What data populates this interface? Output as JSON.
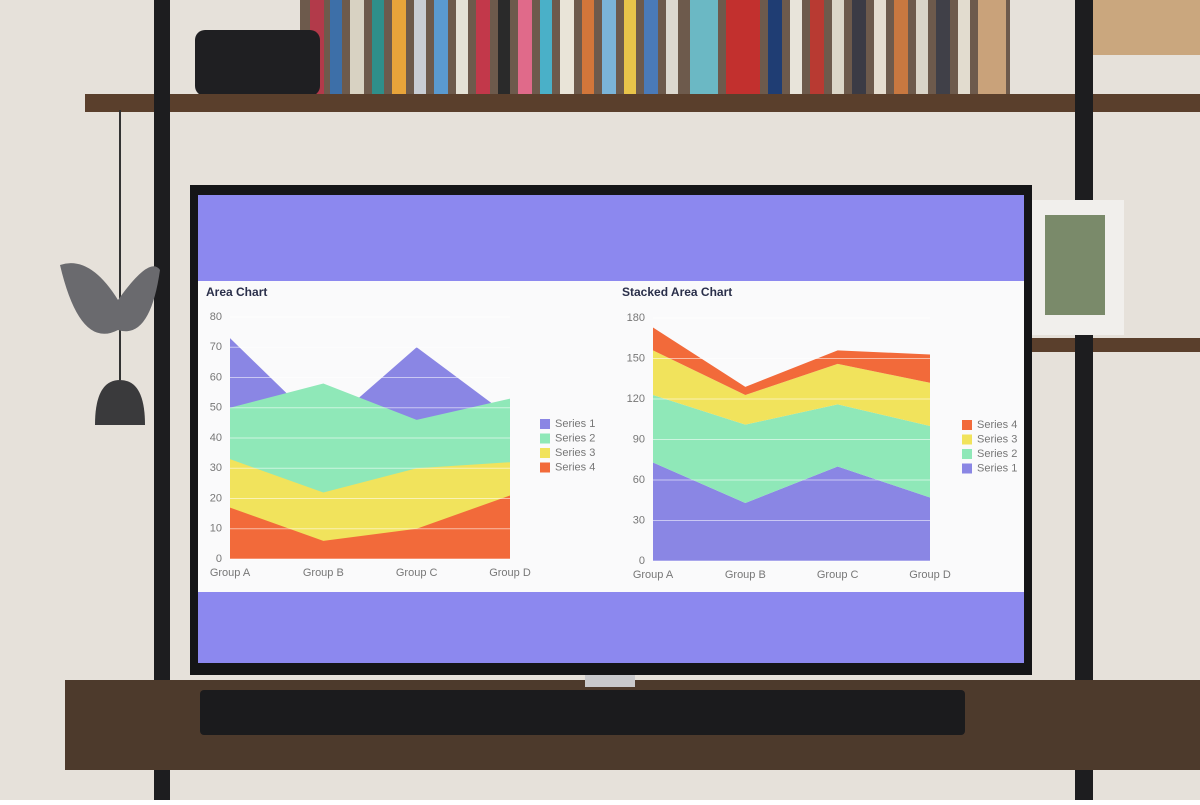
{
  "chart_data": [
    {
      "type": "area",
      "title": "Area Chart",
      "stacked": false,
      "grid": true,
      "legend_reversed": false,
      "categories": [
        "Group A",
        "Group B",
        "Group C",
        "Group D"
      ],
      "ylim": [
        0,
        80
      ],
      "yticks": [
        0,
        10,
        20,
        30,
        40,
        50,
        60,
        70,
        80
      ],
      "series": [
        {
          "name": "Series 1",
          "color": "#8a86e4",
          "values": [
            73,
            43,
            70,
            47
          ]
        },
        {
          "name": "Series 2",
          "color": "#8fe8b8",
          "values": [
            50,
            58,
            46,
            53
          ]
        },
        {
          "name": "Series 3",
          "color": "#f1e35c",
          "values": [
            33,
            22,
            30,
            32
          ]
        },
        {
          "name": "Series 4",
          "color": "#f26a3a",
          "values": [
            17,
            6,
            10,
            21
          ]
        }
      ]
    },
    {
      "type": "area",
      "title": "Stacked Area Chart",
      "stacked": true,
      "grid": true,
      "legend_reversed": true,
      "categories": [
        "Group A",
        "Group B",
        "Group C",
        "Group D"
      ],
      "ylim": [
        0,
        180
      ],
      "yticks": [
        0,
        30,
        60,
        90,
        120,
        150,
        180
      ],
      "series": [
        {
          "name": "Series 1",
          "color": "#8a86e4",
          "values": [
            73,
            43,
            70,
            47
          ]
        },
        {
          "name": "Series 2",
          "color": "#8fe8b8",
          "values": [
            50,
            58,
            46,
            53
          ]
        },
        {
          "name": "Series 3",
          "color": "#f1e35c",
          "values": [
            33,
            22,
            30,
            32
          ]
        },
        {
          "name": "Series 4",
          "color": "#f26a3a",
          "values": [
            17,
            6,
            10,
            21
          ]
        }
      ]
    }
  ]
}
